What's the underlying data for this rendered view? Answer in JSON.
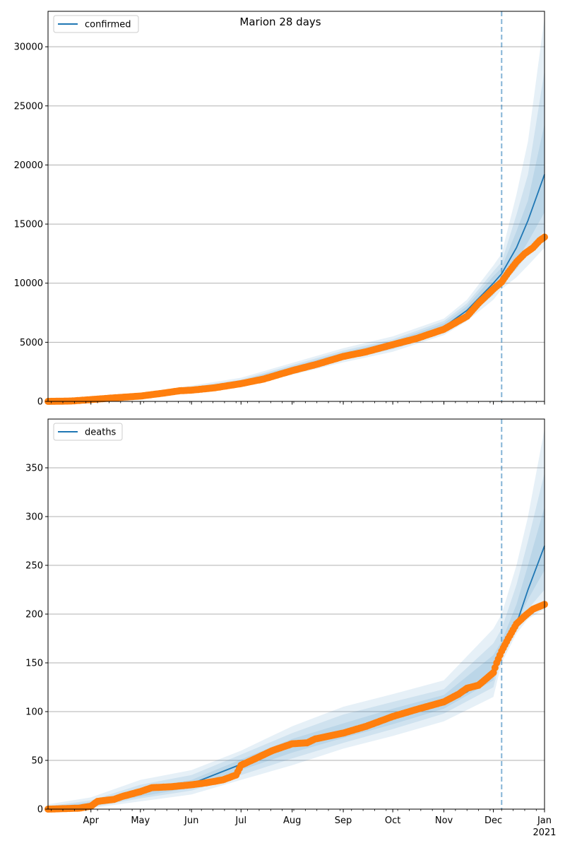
{
  "figure": {
    "title": "Marion 28 days"
  },
  "colors": {
    "model_line": "#1f77b4",
    "observed": "#ff7f0e",
    "band": "#1f77b4",
    "grid": "#b0b0b0",
    "vline": "#1f77b4"
  },
  "x_axis": {
    "start": "2020-03-06",
    "end": "2021-01-01",
    "month_ticks": [
      {
        "date": "2020-04-01",
        "label": "Apr"
      },
      {
        "date": "2020-05-01",
        "label": "May"
      },
      {
        "date": "2020-06-01",
        "label": "Jun"
      },
      {
        "date": "2020-07-01",
        "label": "Jul"
      },
      {
        "date": "2020-08-01",
        "label": "Aug"
      },
      {
        "date": "2020-09-01",
        "label": "Sep"
      },
      {
        "date": "2020-10-01",
        "label": "Oct"
      },
      {
        "date": "2020-11-01",
        "label": "Nov"
      },
      {
        "date": "2020-12-01",
        "label": "Dec"
      },
      {
        "date": "2021-01-01",
        "label": "Jan"
      }
    ],
    "year_label": "2021",
    "forecast_start": "2020-12-06"
  },
  "chart_data": [
    {
      "type": "line",
      "legend": "confirmed",
      "legend_position": "upper-left",
      "grid": "horizontal",
      "ylim": [
        0,
        33000
      ],
      "yticks": [
        0,
        5000,
        10000,
        15000,
        20000,
        25000,
        30000
      ],
      "model": {
        "x": [
          "2020-03-06",
          "2020-04-01",
          "2020-05-01",
          "2020-06-01",
          "2020-07-01",
          "2020-08-01",
          "2020-09-01",
          "2020-10-01",
          "2020-11-01",
          "2020-11-15",
          "2020-12-01",
          "2020-12-06",
          "2020-12-15",
          "2020-12-22",
          "2021-01-01"
        ],
        "y": [
          0,
          150,
          450,
          950,
          1600,
          2700,
          3900,
          4800,
          6300,
          7700,
          10000,
          10800,
          13000,
          15300,
          19200
        ]
      },
      "bands": [
        {
          "x": [
            "2020-03-06",
            "2020-05-01",
            "2020-07-01",
            "2020-09-01",
            "2020-10-01",
            "2020-11-01",
            "2020-11-15",
            "2020-12-01",
            "2020-12-06",
            "2020-12-15",
            "2020-12-22",
            "2021-01-01"
          ],
          "low": [
            0,
            300,
            1200,
            3300,
            4200,
            5600,
            6800,
            8600,
            9500,
            10500,
            11500,
            13000
          ],
          "high": [
            100,
            650,
            2000,
            4500,
            5500,
            7000,
            8600,
            11500,
            12500,
            17500,
            22000,
            32500
          ]
        },
        {
          "x": [
            "2020-03-06",
            "2020-05-01",
            "2020-07-01",
            "2020-09-01",
            "2020-10-01",
            "2020-11-01",
            "2020-11-15",
            "2020-12-01",
            "2020-12-06",
            "2020-12-15",
            "2020-12-22",
            "2021-01-01"
          ],
          "low": [
            0,
            350,
            1350,
            3500,
            4400,
            5800,
            7100,
            9000,
            9900,
            11200,
            12500,
            14500
          ],
          "high": [
            80,
            580,
            1850,
            4300,
            5250,
            6800,
            8300,
            11000,
            11800,
            15800,
            19200,
            28000
          ]
        },
        {
          "x": [
            "2020-03-06",
            "2020-05-01",
            "2020-07-01",
            "2020-09-01",
            "2020-10-01",
            "2020-11-01",
            "2020-11-15",
            "2020-12-01",
            "2020-12-06",
            "2020-12-15",
            "2020-12-22",
            "2021-01-01"
          ],
          "low": [
            0,
            400,
            1450,
            3650,
            4550,
            6000,
            7350,
            9400,
            10300,
            11900,
            13500,
            16000
          ],
          "high": [
            50,
            520,
            1750,
            4150,
            5100,
            6600,
            8050,
            10600,
            11300,
            14400,
            17000,
            23500
          ]
        }
      ],
      "observed": {
        "x": [
          "2020-03-06",
          "2020-03-20",
          "2020-04-01",
          "2020-04-15",
          "2020-05-01",
          "2020-05-15",
          "2020-05-25",
          "2020-06-01",
          "2020-06-15",
          "2020-07-01",
          "2020-07-15",
          "2020-08-01",
          "2020-08-15",
          "2020-09-01",
          "2020-09-15",
          "2020-10-01",
          "2020-10-15",
          "2020-11-01",
          "2020-11-15",
          "2020-11-22",
          "2020-12-01",
          "2020-12-06",
          "2020-12-10",
          "2020-12-15",
          "2020-12-20",
          "2020-12-25",
          "2020-12-29",
          "2021-01-01"
        ],
        "y": [
          0,
          30,
          150,
          300,
          450,
          700,
          900,
          950,
          1150,
          1500,
          1900,
          2600,
          3100,
          3800,
          4200,
          4800,
          5300,
          6100,
          7200,
          8300,
          9500,
          10100,
          10900,
          11800,
          12500,
          13000,
          13600,
          13900
        ]
      }
    },
    {
      "type": "line",
      "legend": "deaths",
      "legend_position": "upper-left",
      "grid": "horizontal",
      "ylim": [
        0,
        400
      ],
      "yticks": [
        0,
        50,
        100,
        150,
        200,
        250,
        300,
        350
      ],
      "model": {
        "x": [
          "2020-03-06",
          "2020-04-01",
          "2020-05-01",
          "2020-06-01",
          "2020-07-01",
          "2020-08-01",
          "2020-09-01",
          "2020-10-01",
          "2020-11-01",
          "2020-11-15",
          "2020-12-01",
          "2020-12-06",
          "2020-12-15",
          "2020-12-22",
          "2021-01-01"
        ],
        "y": [
          0,
          5,
          17,
          26,
          46,
          65,
          80,
          95,
          110,
          120,
          142,
          160,
          190,
          225,
          270
        ]
      },
      "bands": [
        {
          "x": [
            "2020-03-06",
            "2020-04-01",
            "2020-05-01",
            "2020-06-01",
            "2020-07-01",
            "2020-08-01",
            "2020-09-01",
            "2020-10-01",
            "2020-11-01",
            "2020-12-01",
            "2020-12-06",
            "2020-12-15",
            "2020-12-22",
            "2021-01-01"
          ],
          "low": [
            0,
            1,
            8,
            15,
            30,
            45,
            62,
            75,
            90,
            115,
            150,
            180,
            195,
            205
          ],
          "high": [
            5,
            12,
            30,
            40,
            60,
            85,
            105,
            118,
            132,
            185,
            200,
            250,
            300,
            390
          ]
        },
        {
          "x": [
            "2020-03-06",
            "2020-04-01",
            "2020-05-01",
            "2020-06-01",
            "2020-07-01",
            "2020-08-01",
            "2020-09-01",
            "2020-10-01",
            "2020-11-01",
            "2020-12-01",
            "2020-12-06",
            "2020-12-15",
            "2020-12-22",
            "2021-01-01"
          ],
          "low": [
            0,
            2,
            11,
            19,
            35,
            52,
            68,
            82,
            98,
            125,
            158,
            185,
            205,
            225
          ],
          "high": [
            3,
            9,
            25,
            35,
            56,
            78,
            97,
            110,
            123,
            170,
            185,
            230,
            275,
            345
          ]
        },
        {
          "x": [
            "2020-03-06",
            "2020-04-01",
            "2020-05-01",
            "2020-06-01",
            "2020-07-01",
            "2020-08-01",
            "2020-09-01",
            "2020-10-01",
            "2020-11-01",
            "2020-12-01",
            "2020-12-06",
            "2020-12-15",
            "2020-12-22",
            "2021-01-01"
          ],
          "low": [
            0,
            3,
            13,
            22,
            40,
            58,
            73,
            87,
            103,
            132,
            163,
            190,
            215,
            245
          ],
          "high": [
            2,
            7,
            21,
            30,
            51,
            72,
            88,
            103,
            117,
            158,
            172,
            210,
            250,
            310
          ]
        }
      ],
      "observed": {
        "x": [
          "2020-03-06",
          "2020-03-25",
          "2020-04-01",
          "2020-04-05",
          "2020-04-15",
          "2020-04-20",
          "2020-05-01",
          "2020-05-08",
          "2020-05-20",
          "2020-06-01",
          "2020-06-10",
          "2020-06-20",
          "2020-06-28",
          "2020-07-01",
          "2020-07-10",
          "2020-07-20",
          "2020-08-01",
          "2020-08-10",
          "2020-08-15",
          "2020-09-01",
          "2020-09-15",
          "2020-10-01",
          "2020-10-15",
          "2020-11-01",
          "2020-11-10",
          "2020-11-15",
          "2020-11-22",
          "2020-12-01",
          "2020-12-03",
          "2020-12-06",
          "2020-12-10",
          "2020-12-15",
          "2020-12-20",
          "2020-12-25",
          "2021-01-01"
        ],
        "y": [
          0,
          1,
          3,
          8,
          10,
          13,
          18,
          22,
          23,
          25,
          27,
          30,
          35,
          45,
          52,
          60,
          67,
          68,
          72,
          78,
          85,
          95,
          102,
          110,
          118,
          124,
          127,
          140,
          150,
          162,
          175,
          190,
          198,
          205,
          210
        ]
      }
    }
  ]
}
